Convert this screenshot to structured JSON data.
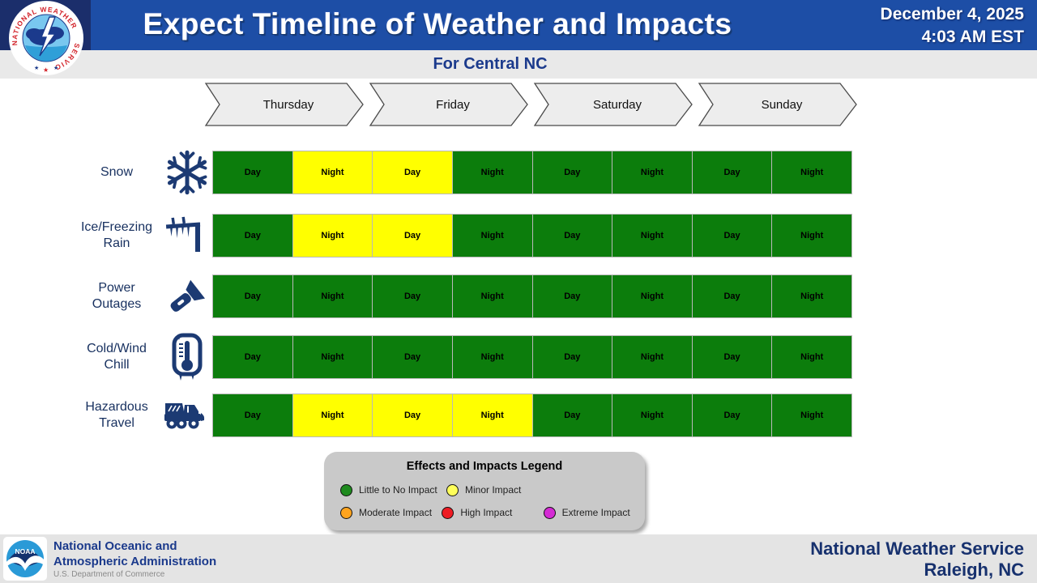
{
  "header": {
    "title": "Expect Timeline of Weather and Impacts",
    "date_line1": "December 4, 2025",
    "date_line2": "4:03 AM EST",
    "nws_logo": {
      "text_top": "NATIONAL WEATHER",
      "text_bottom": "SERVICE"
    }
  },
  "subtitle": "For Central NC",
  "theme": {
    "header_blue": "#1d4ea6",
    "corner_navy": "#1b2e6b",
    "subtitle_blue": "#1b3a8c",
    "label_navy": "#17305f"
  },
  "chart_data": {
    "type": "heatmap",
    "title": "Expect Timeline of Weather and Impacts",
    "subtitle": "For Central NC",
    "day_headers": [
      "Thursday",
      "Friday",
      "Saturday",
      "Sunday"
    ],
    "period_columns": [
      "Day",
      "Night",
      "Day",
      "Night",
      "Day",
      "Night",
      "Day",
      "Night"
    ],
    "impact_scale": {
      "little": {
        "label": "Little to No Impact",
        "color": "#0c7d0c"
      },
      "minor": {
        "label": "Minor Impact",
        "color": "#ffff00"
      },
      "moderate": {
        "label": "Moderate Impact",
        "color": "#ffa41e"
      },
      "high": {
        "label": "High Impact",
        "color": "#ee1c24"
      },
      "extreme": {
        "label": "Extreme Impact",
        "color": "#d42bd4"
      }
    },
    "rows": [
      {
        "label": "Snow",
        "icon": "snowflake-icon",
        "impacts": [
          "little",
          "minor",
          "minor",
          "little",
          "little",
          "little",
          "little",
          "little"
        ]
      },
      {
        "label": "Ice/Freezing Rain",
        "icon": "ice-icon",
        "impacts": [
          "little",
          "minor",
          "minor",
          "little",
          "little",
          "little",
          "little",
          "little"
        ]
      },
      {
        "label": "Power Outages",
        "icon": "flashlight-icon",
        "impacts": [
          "little",
          "little",
          "little",
          "little",
          "little",
          "little",
          "little",
          "little"
        ]
      },
      {
        "label": "Cold/Wind Chill",
        "icon": "thermometer-icon",
        "impacts": [
          "little",
          "little",
          "little",
          "little",
          "little",
          "little",
          "little",
          "little"
        ]
      },
      {
        "label": "Hazardous Travel",
        "icon": "plow-truck-icon",
        "impacts": [
          "little",
          "minor",
          "minor",
          "minor",
          "little",
          "little",
          "little",
          "little"
        ]
      }
    ]
  },
  "legend": {
    "title": "Effects and Impacts Legend",
    "rows": [
      [
        {
          "label": "Little to No Impact",
          "color": "#1f8b1f"
        },
        {
          "label": "Minor Impact",
          "color": "#ffff5a"
        }
      ],
      [
        {
          "label": "Moderate Impact",
          "color": "#ffa41e"
        },
        {
          "label": "High Impact",
          "color": "#ee1c24"
        },
        {
          "label": "Extreme Impact",
          "color": "#d42bd4"
        }
      ]
    ]
  },
  "footer": {
    "noaa_acronym": "NOAA",
    "agency_line1": "National Oceanic and",
    "agency_line2": "Atmospheric Administration",
    "department": "U.S. Department of Commerce",
    "office_line1": "National Weather Service",
    "office_line2": "Raleigh, NC"
  }
}
